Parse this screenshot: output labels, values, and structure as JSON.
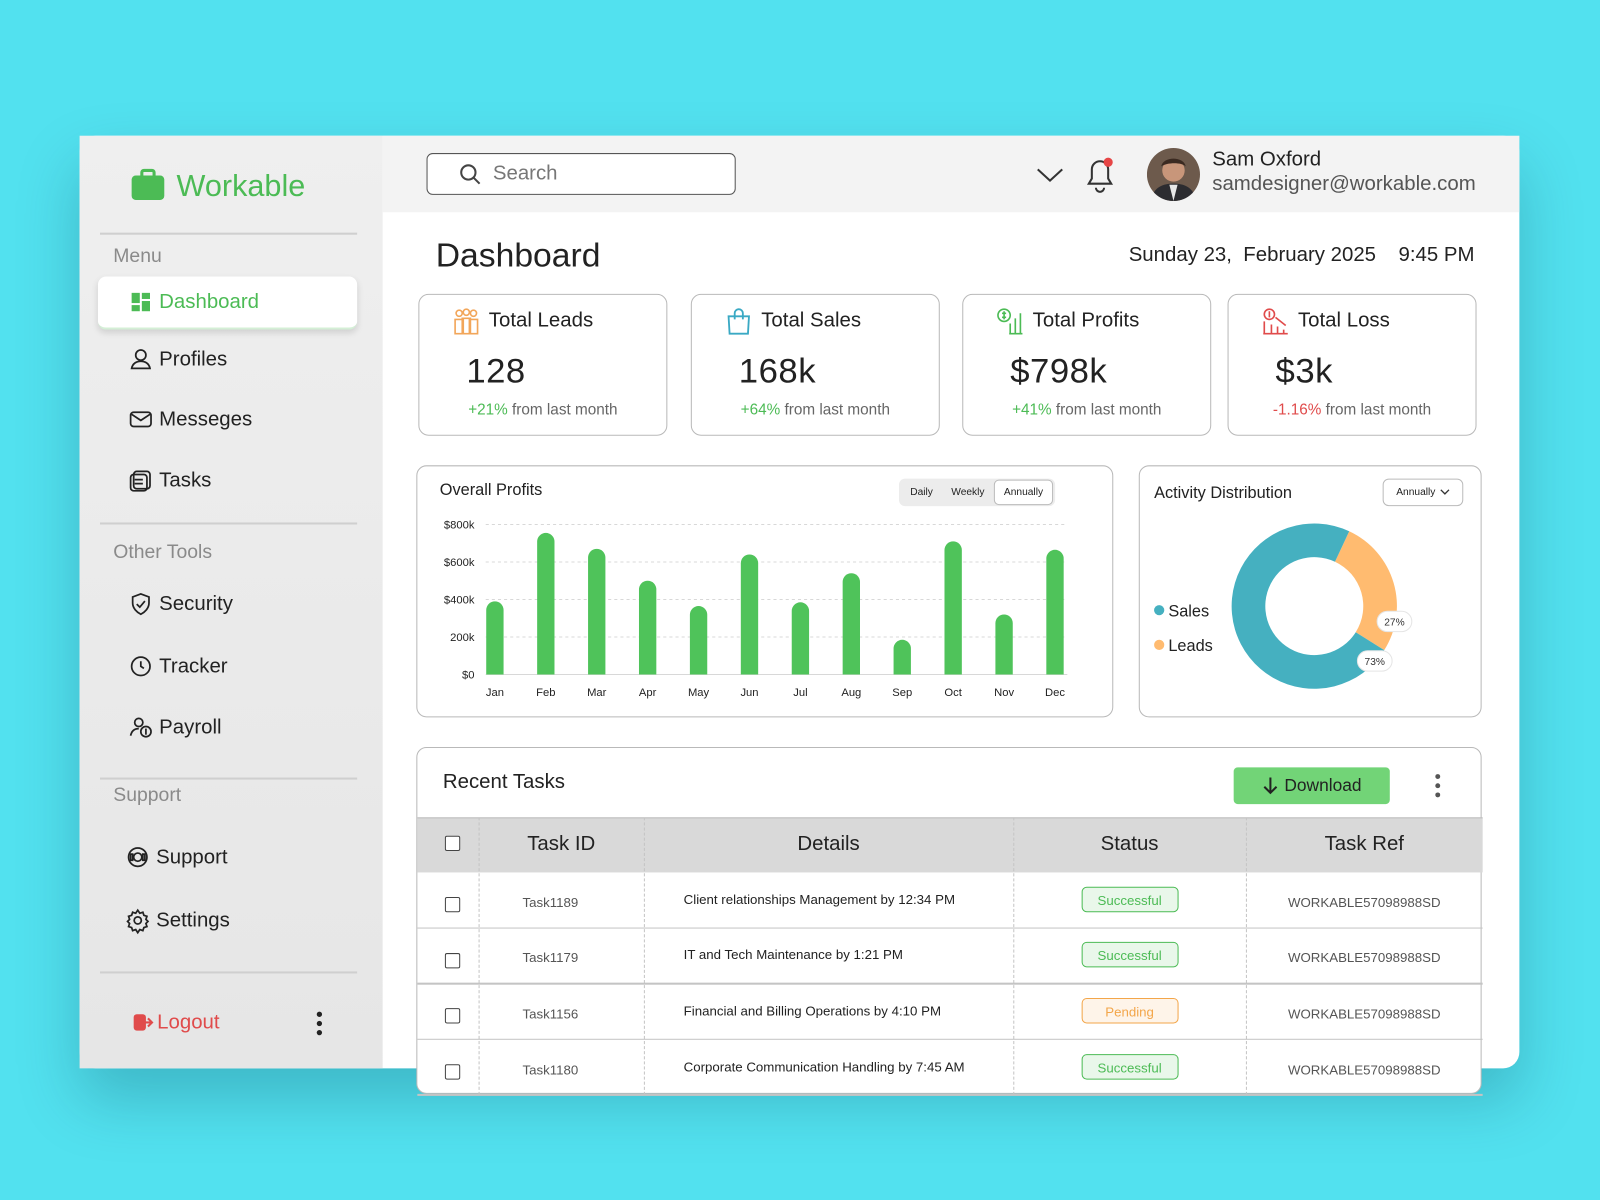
{
  "sidebar": {
    "brand": "Workable",
    "menu_title": "Menu",
    "menu": [
      "Dashboard",
      "Profiles",
      "Messeges",
      "Tasks"
    ],
    "tools_title": "Other Tools",
    "tools": [
      "Security",
      "Tracker",
      "Payroll"
    ],
    "support_title": "Support",
    "support": [
      "Support",
      "Settings"
    ],
    "logout": "Logout"
  },
  "header": {
    "search_placeholder": "Search",
    "user_name": "Sam Oxford",
    "user_email": "samdesigner@workable.com"
  },
  "page": {
    "title": "Dashboard",
    "date": "Sunday 23,  February 2025",
    "time": "9:45 PM"
  },
  "stats": [
    {
      "title": "Total Leads",
      "value": "128",
      "change": "+21%",
      "note": "from last month"
    },
    {
      "title": "Total Sales",
      "value": "168k",
      "change": "+64%",
      "note": "from last month"
    },
    {
      "title": "Total Profits",
      "value": "$798k",
      "change": "+41%",
      "note": "from last month"
    },
    {
      "title": "Total Loss",
      "value": "$3k",
      "change": "-1.16%",
      "note": "from last month"
    }
  ],
  "chart_data": [
    {
      "type": "bar",
      "title": "Overall Profits",
      "periods": [
        "Daily",
        "Weekly",
        "Annually"
      ],
      "period_selected": "Annually",
      "categories": [
        "Jan",
        "Feb",
        "Mar",
        "Apr",
        "May",
        "Jun",
        "Jul",
        "Aug",
        "Sep",
        "Oct",
        "Nov",
        "Dec"
      ],
      "values": [
        390000,
        755000,
        670000,
        500000,
        365000,
        640000,
        385000,
        540000,
        185000,
        710000,
        320000,
        665000
      ],
      "color": "#4fc35a",
      "ylim": [
        0,
        800000
      ],
      "yticks": [
        {
          "value": 0,
          "label": "$0"
        },
        {
          "value": 200000,
          "label": "200k"
        },
        {
          "value": 400000,
          "label": "$400k"
        },
        {
          "value": 600000,
          "label": "$600k"
        },
        {
          "value": 800000,
          "label": "$800k"
        }
      ],
      "grid": true
    },
    {
      "type": "pie",
      "title": "Activity Distribution",
      "period": "Annually",
      "categories": [
        "Sales",
        "Leads"
      ],
      "values": [
        73,
        27
      ],
      "value_labels": [
        "73%",
        "27%"
      ],
      "colors": [
        "#45b0c0",
        "#ffbb70"
      ]
    }
  ],
  "tasks": {
    "title": "Recent Tasks",
    "download": "Download",
    "columns": [
      "Task ID",
      "Details",
      "Status",
      "Task Ref"
    ],
    "status_colors": {
      "Successful": "#4cbb55",
      "Pending": "#f3a64a"
    },
    "rows": [
      [
        "Task1189",
        "Client relationships Management by 12:34 PM",
        "Successful",
        "WORKABLE57098988SD"
      ],
      [
        "Task1179",
        "IT and Tech Maintenance by 1:21 PM",
        "Successful",
        "WORKABLE57098988SD"
      ],
      [
        "Task1156",
        "Financial and Billing Operations by 4:10 PM",
        "Pending",
        "WORKABLE57098988SD"
      ],
      [
        "Task1180",
        "Corporate Communication Handling by 7:45 AM",
        "Successful",
        "WORKABLE57098988SD"
      ]
    ]
  }
}
